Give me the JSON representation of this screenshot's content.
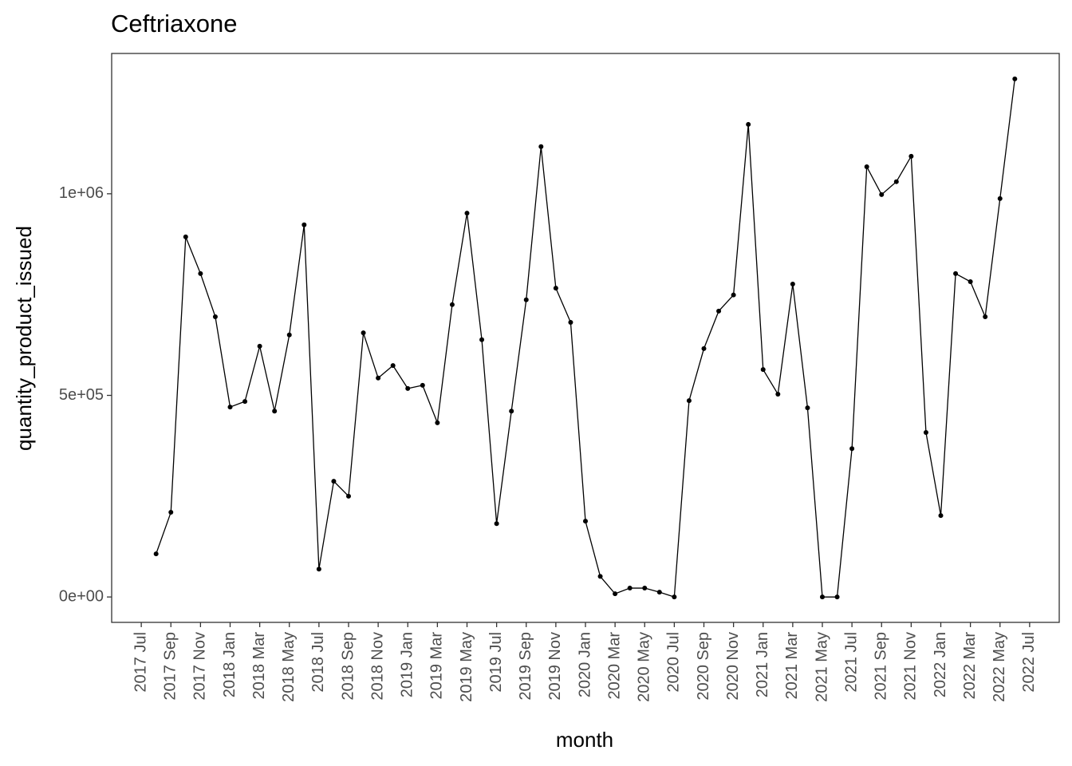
{
  "chart_data": {
    "type": "line",
    "title": "Ceftriaxone",
    "x_label": "month",
    "y_label": "quantity_product_issued",
    "x": [
      "2017-08",
      "2017-09",
      "2017-10",
      "2017-11",
      "2017-12",
      "2018-01",
      "2018-02",
      "2018-03",
      "2018-04",
      "2018-05",
      "2018-06",
      "2018-07",
      "2018-08",
      "2018-09",
      "2018-10",
      "2018-11",
      "2018-12",
      "2019-01",
      "2019-02",
      "2019-03",
      "2019-04",
      "2019-05",
      "2019-06",
      "2019-07",
      "2019-08",
      "2019-09",
      "2019-10",
      "2019-11",
      "2019-12",
      "2020-01",
      "2020-02",
      "2020-03",
      "2020-04",
      "2020-05",
      "2020-06",
      "2020-07",
      "2020-08",
      "2020-09",
      "2020-10",
      "2020-11",
      "2020-12",
      "2021-01",
      "2021-02",
      "2021-03",
      "2021-04",
      "2021-05",
      "2021-06",
      "2021-07",
      "2021-08",
      "2021-09",
      "2021-10",
      "2021-11",
      "2021-12",
      "2022-01",
      "2022-02",
      "2022-03",
      "2022-04",
      "2022-05",
      "2022-06"
    ],
    "series": [
      {
        "name": "quantity_product_issued",
        "color": "#000000",
        "values": [
          107000,
          210000,
          893000,
          802000,
          695000,
          471000,
          485000,
          622000,
          461000,
          650000,
          923000,
          69000,
          287000,
          250000,
          655000,
          543000,
          574000,
          517000,
          525000,
          432000,
          725000,
          952000,
          638000,
          182000,
          461000,
          737000,
          1117000,
          766000,
          681000,
          188000,
          51000,
          8000,
          22000,
          22000,
          12000,
          0,
          487000,
          616000,
          709000,
          749000,
          1172000,
          564000,
          503000,
          776000,
          469000,
          0,
          0,
          368000,
          1067000,
          998000,
          1030000,
          1093000,
          408000,
          202000,
          802000,
          782000,
          695000,
          988000,
          1285000
        ]
      }
    ],
    "xlim": [
      "2017-05",
      "2022-09"
    ],
    "xticks": [
      {
        "value": "2017-07",
        "label": "2017 Jul"
      },
      {
        "value": "2017-09",
        "label": "2017 Sep"
      },
      {
        "value": "2017-11",
        "label": "2017 Nov"
      },
      {
        "value": "2018-01",
        "label": "2018 Jan"
      },
      {
        "value": "2018-03",
        "label": "2018 Mar"
      },
      {
        "value": "2018-05",
        "label": "2018 May"
      },
      {
        "value": "2018-07",
        "label": "2018 Jul"
      },
      {
        "value": "2018-09",
        "label": "2018 Sep"
      },
      {
        "value": "2018-11",
        "label": "2018 Nov"
      },
      {
        "value": "2019-01",
        "label": "2019 Jan"
      },
      {
        "value": "2019-03",
        "label": "2019 Mar"
      },
      {
        "value": "2019-05",
        "label": "2019 May"
      },
      {
        "value": "2019-07",
        "label": "2019 Jul"
      },
      {
        "value": "2019-09",
        "label": "2019 Sep"
      },
      {
        "value": "2019-11",
        "label": "2019 Nov"
      },
      {
        "value": "2020-01",
        "label": "2020 Jan"
      },
      {
        "value": "2020-03",
        "label": "2020 Mar"
      },
      {
        "value": "2020-05",
        "label": "2020 May"
      },
      {
        "value": "2020-07",
        "label": "2020 Jul"
      },
      {
        "value": "2020-09",
        "label": "2020 Sep"
      },
      {
        "value": "2020-11",
        "label": "2020 Nov"
      },
      {
        "value": "2021-01",
        "label": "2021 Jan"
      },
      {
        "value": "2021-03",
        "label": "2021 Mar"
      },
      {
        "value": "2021-05",
        "label": "2021 May"
      },
      {
        "value": "2021-07",
        "label": "2021 Jul"
      },
      {
        "value": "2021-09",
        "label": "2021 Sep"
      },
      {
        "value": "2021-11",
        "label": "2021 Nov"
      },
      {
        "value": "2022-01",
        "label": "2022 Jan"
      },
      {
        "value": "2022-03",
        "label": "2022 Mar"
      },
      {
        "value": "2022-05",
        "label": "2022 May"
      },
      {
        "value": "2022-07",
        "label": "2022 Jul"
      }
    ],
    "ylim": [
      -63000,
      1348000
    ],
    "yticks": [
      {
        "value": 0,
        "label": "0e+00"
      },
      {
        "value": 500000,
        "label": "5e+05"
      },
      {
        "value": 1000000,
        "label": "1e+06"
      }
    ],
    "grid": false
  }
}
